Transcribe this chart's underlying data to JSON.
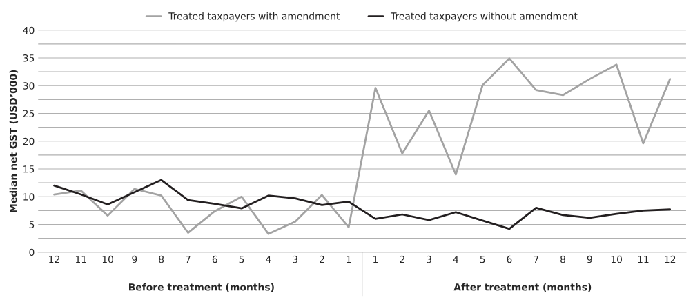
{
  "chart_data": {
    "type": "line",
    "ylabel": "Median net GST (USD’000)",
    "categories": [
      "12",
      "11",
      "10",
      "9",
      "8",
      "7",
      "6",
      "5",
      "4",
      "3",
      "2",
      "1",
      "1",
      "2",
      "3",
      "4",
      "5",
      "6",
      "7",
      "8",
      "9",
      "10",
      "11",
      "12"
    ],
    "series": [
      {
        "name": "Treated taxpayers with amendment",
        "color": "#a3a3a3",
        "values": [
          10.4,
          11.1,
          6.6,
          11.4,
          10.2,
          3.5,
          7.4,
          10.0,
          3.3,
          5.5,
          10.3,
          4.5,
          29.6,
          17.8,
          25.5,
          14.0,
          30.1,
          34.9,
          29.2,
          28.3,
          31.2,
          33.8,
          19.6,
          31.2
        ]
      },
      {
        "name": "Treated taxpayers without amendment",
        "color": "#231f20",
        "values": [
          12.0,
          10.4,
          8.6,
          10.8,
          13.0,
          9.4,
          8.7,
          7.9,
          10.2,
          9.7,
          8.5,
          9.1,
          6.0,
          6.8,
          5.8,
          7.2,
          5.7,
          4.2,
          8.0,
          6.7,
          6.2,
          6.9,
          7.5,
          7.7
        ]
      }
    ],
    "annotations": [
      "Before treatment (months)",
      "After treatment (months)"
    ],
    "ylim": [
      0,
      40
    ],
    "yticks": [
      0,
      {
        "value": 2.5,
        "label": null
      },
      5,
      {
        "value": 7.5,
        "label": null
      },
      10,
      {
        "value": 12.5,
        "label": null
      },
      15,
      {
        "value": 17.5,
        "label": null
      },
      20,
      {
        "value": 22.5,
        "label": null
      },
      25,
      {
        "value": 27.5,
        "label": null
      },
      30,
      {
        "value": 32.5,
        "label": null
      },
      35,
      {
        "value": 37.5,
        "label": null
      },
      40
    ],
    "grid": "y",
    "legend": "top",
    "marker": "none",
    "line_style": "solid"
  }
}
